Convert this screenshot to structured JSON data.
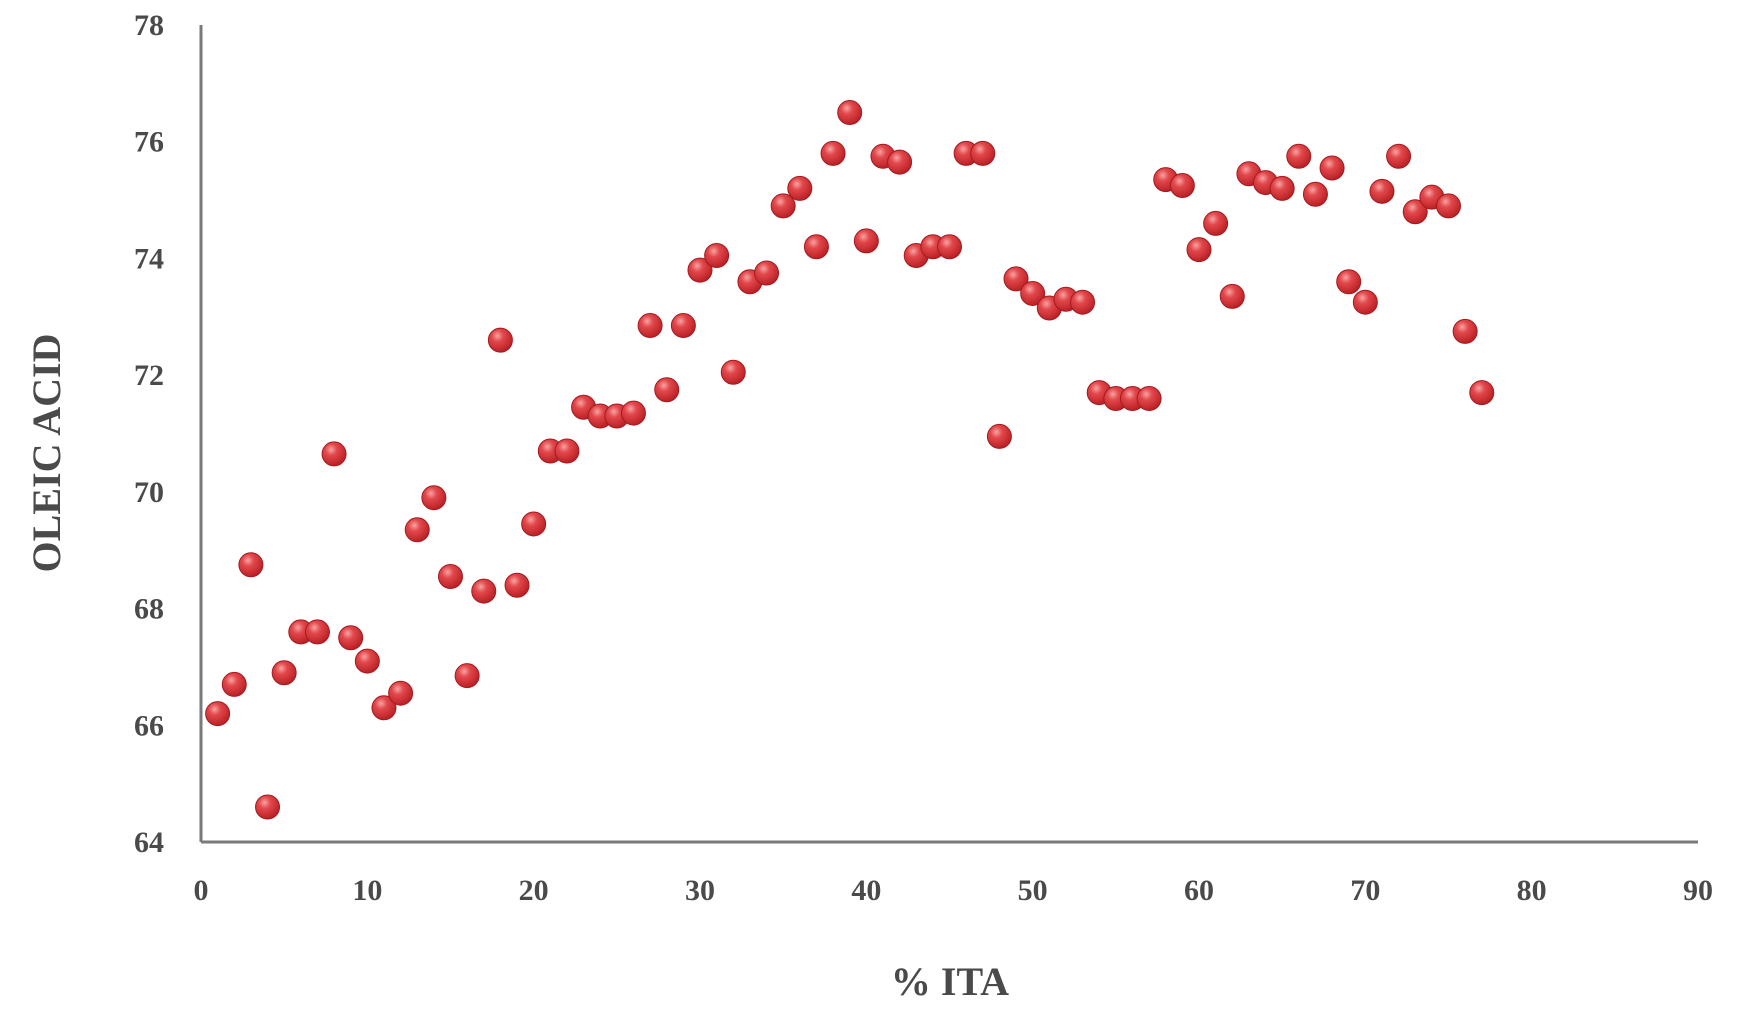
{
  "chart_data": {
    "type": "scatter",
    "title": "",
    "xlabel": "% ITA",
    "ylabel": "OLEIC ACID",
    "xlim": [
      0,
      90
    ],
    "ylim": [
      64,
      78
    ],
    "xticks": [
      "0",
      "10",
      "20",
      "30",
      "40",
      "50",
      "60",
      "70",
      "80",
      "90"
    ],
    "yticks": [
      "64",
      "66",
      "68",
      "70",
      "72",
      "74",
      "76",
      "78"
    ],
    "grid": false,
    "legend": "none",
    "marker_color": "#d9363b",
    "series": [
      {
        "points": [
          [
            1,
            66.2
          ],
          [
            2,
            66.7
          ],
          [
            3,
            68.75
          ],
          [
            4,
            64.6
          ],
          [
            5,
            66.9
          ],
          [
            6,
            67.6
          ],
          [
            7,
            67.6
          ],
          [
            8,
            70.65
          ],
          [
            9,
            67.5
          ],
          [
            10,
            67.1
          ],
          [
            11,
            66.3
          ],
          [
            12,
            66.55
          ],
          [
            13,
            69.35
          ],
          [
            14,
            69.9
          ],
          [
            15,
            68.55
          ],
          [
            16,
            66.85
          ],
          [
            17,
            68.3
          ],
          [
            18,
            72.6
          ],
          [
            19,
            68.4
          ],
          [
            20,
            69.45
          ],
          [
            21,
            70.7
          ],
          [
            22,
            70.7
          ],
          [
            23,
            71.45
          ],
          [
            24,
            71.3
          ],
          [
            25,
            71.3
          ],
          [
            26,
            71.35
          ],
          [
            27,
            72.85
          ],
          [
            28,
            71.75
          ],
          [
            29,
            72.85
          ],
          [
            30,
            73.8
          ],
          [
            31,
            74.05
          ],
          [
            32,
            72.05
          ],
          [
            33,
            73.6
          ],
          [
            34,
            73.75
          ],
          [
            35,
            74.9
          ],
          [
            36,
            75.2
          ],
          [
            37,
            74.2
          ],
          [
            38,
            75.8
          ],
          [
            39,
            76.5
          ],
          [
            40,
            74.3
          ],
          [
            41,
            75.75
          ],
          [
            42,
            75.65
          ],
          [
            43,
            74.05
          ],
          [
            44,
            74.2
          ],
          [
            45,
            74.2
          ],
          [
            46,
            75.8
          ],
          [
            47,
            75.8
          ],
          [
            48,
            70.95
          ],
          [
            49,
            73.65
          ],
          [
            50,
            73.4
          ],
          [
            51,
            73.15
          ],
          [
            52,
            73.3
          ],
          [
            53,
            73.25
          ],
          [
            54,
            71.7
          ],
          [
            55,
            71.6
          ],
          [
            56,
            71.6
          ],
          [
            57,
            71.6
          ],
          [
            58,
            75.35
          ],
          [
            59,
            75.25
          ],
          [
            60,
            74.15
          ],
          [
            61,
            74.6
          ],
          [
            62,
            73.35
          ],
          [
            63,
            75.45
          ],
          [
            64,
            75.3
          ],
          [
            65,
            75.2
          ],
          [
            66,
            75.75
          ],
          [
            67,
            75.1
          ],
          [
            68,
            75.55
          ],
          [
            69,
            73.6
          ],
          [
            70,
            73.25
          ],
          [
            71,
            75.15
          ],
          [
            72,
            75.75
          ],
          [
            73,
            74.8
          ],
          [
            74,
            75.05
          ],
          [
            75,
            74.9
          ],
          [
            76,
            72.75
          ],
          [
            77,
            71.7
          ]
        ]
      }
    ]
  }
}
